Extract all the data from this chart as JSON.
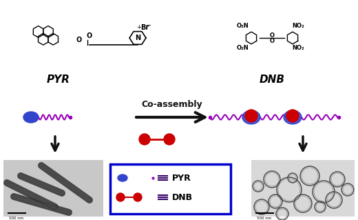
{
  "bg_color": "#ffffff",
  "pyr_label": "PYR",
  "dnb_label": "DNB",
  "coassembly_label": "Co-assembly",
  "legend_pyr": "PYR",
  "legend_dnb": "DNB",
  "blue_color": "#3344cc",
  "red_color": "#cc0000",
  "purple_color": "#9900bb",
  "arrow_color": "#111111",
  "legend_border": "#0000cc",
  "scale_bar_label": "500 nm",
  "text_color": "#000000"
}
